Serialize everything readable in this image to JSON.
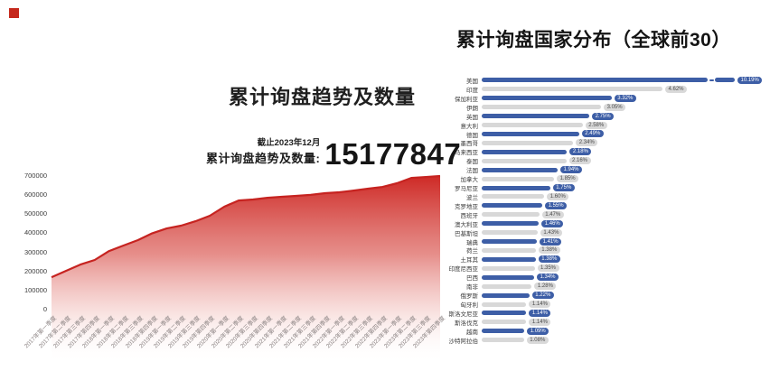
{
  "brand": {
    "corner_mark_color": "#c5281c"
  },
  "colors": {
    "area_red_top": "#ce2a26",
    "area_line": "#c62320",
    "bar_blue": "#3d5ea6",
    "bar_gray": "#d8d8d8",
    "pill_gray_bg": "#d9d9d9"
  },
  "left_panel": {
    "title": "累计询盘趋势及数量",
    "stat": {
      "caption": "截止2023年12月",
      "label": "累计询盘趋势及数量:",
      "value": "15177847"
    }
  },
  "right_panel": {
    "title": "累计询盘国家分布（全球前30）"
  },
  "chart_data": [
    {
      "type": "area",
      "title": "累计询盘趋势及数量",
      "x": [
        "2017年第一季度",
        "2017年第二季度",
        "2017年第三季度",
        "2017年第四季度",
        "2018年第一季度",
        "2018年第二季度",
        "2018年第三季度",
        "2018年第四季度",
        "2019年第一季度",
        "2019年第二季度",
        "2019年第三季度",
        "2019年第四季度",
        "2020年第一季度",
        "2020年第二季度",
        "2020年第三季度",
        "2020年第四季度",
        "2021年第一季度",
        "2021年第二季度",
        "2021年第三季度",
        "2021年第四季度",
        "2022年第一季度",
        "2022年第二季度",
        "2022年第三季度",
        "2022年第四季度",
        "2023年第一季度",
        "2023年第二季度",
        "2023年第三季度",
        "2023年第四季度"
      ],
      "values": [
        170000,
        203000,
        236000,
        260000,
        307000,
        336000,
        364000,
        400000,
        425000,
        440000,
        463000,
        492000,
        539000,
        572000,
        577000,
        586000,
        591000,
        596000,
        601000,
        610000,
        615000,
        624000,
        634000,
        643000,
        662000,
        690000,
        695000,
        700000
      ],
      "ylim": [
        0,
        700000
      ],
      "yticks": [
        0,
        100000,
        200000,
        300000,
        400000,
        500000,
        600000,
        700000
      ],
      "grid": false,
      "legend": "none"
    },
    {
      "type": "bar",
      "orientation": "horizontal",
      "title": "累计询盘国家分布（全球前30）",
      "categories": [
        "美国",
        "印度",
        "保加利亚",
        "伊朗",
        "英国",
        "意大利",
        "德国",
        "墨西哥",
        "马来西亚",
        "泰国",
        "法国",
        "加拿大",
        "罗马尼亚",
        "波兰",
        "克罗地亚",
        "西班牙",
        "澳大利亚",
        "巴基斯坦",
        "瑞典",
        "荷兰",
        "土耳其",
        "印度尼西亚",
        "巴西",
        "南非",
        "俄罗斯",
        "匈牙利",
        "斯洛文尼亚",
        "斯洛伐克",
        "越南",
        "沙特阿拉伯"
      ],
      "values": [
        10.19,
        4.62,
        3.32,
        3.05,
        2.75,
        2.58,
        2.49,
        2.34,
        2.18,
        2.16,
        1.94,
        1.85,
        1.75,
        1.6,
        1.55,
        1.47,
        1.46,
        1.43,
        1.41,
        1.38,
        1.38,
        1.35,
        1.34,
        1.28,
        1.22,
        1.14,
        1.14,
        1.14,
        1.09,
        1.08
      ],
      "value_labels": [
        "10.19%",
        "4.62%",
        "3.32%",
        "3.05%",
        "2.75%",
        "2.58%",
        "2.49%",
        "2.34%",
        "2.18%",
        "2.16%",
        "1.94%",
        "1.85%",
        "1.75%",
        "1.60%",
        "1.55%",
        "1.47%",
        "1.46%",
        "1.43%",
        "1.41%",
        "1.38%",
        "1.38%",
        "1.35%",
        "1.34%",
        "1.28%",
        "1.22%",
        "1.14%",
        "1.14%",
        "1.14%",
        "1.09%",
        "1.08%"
      ],
      "axis_break_first_bar": true,
      "alternating_colors": [
        "#3d5ea6",
        "#d8d8d8"
      ],
      "legend": "none"
    }
  ]
}
